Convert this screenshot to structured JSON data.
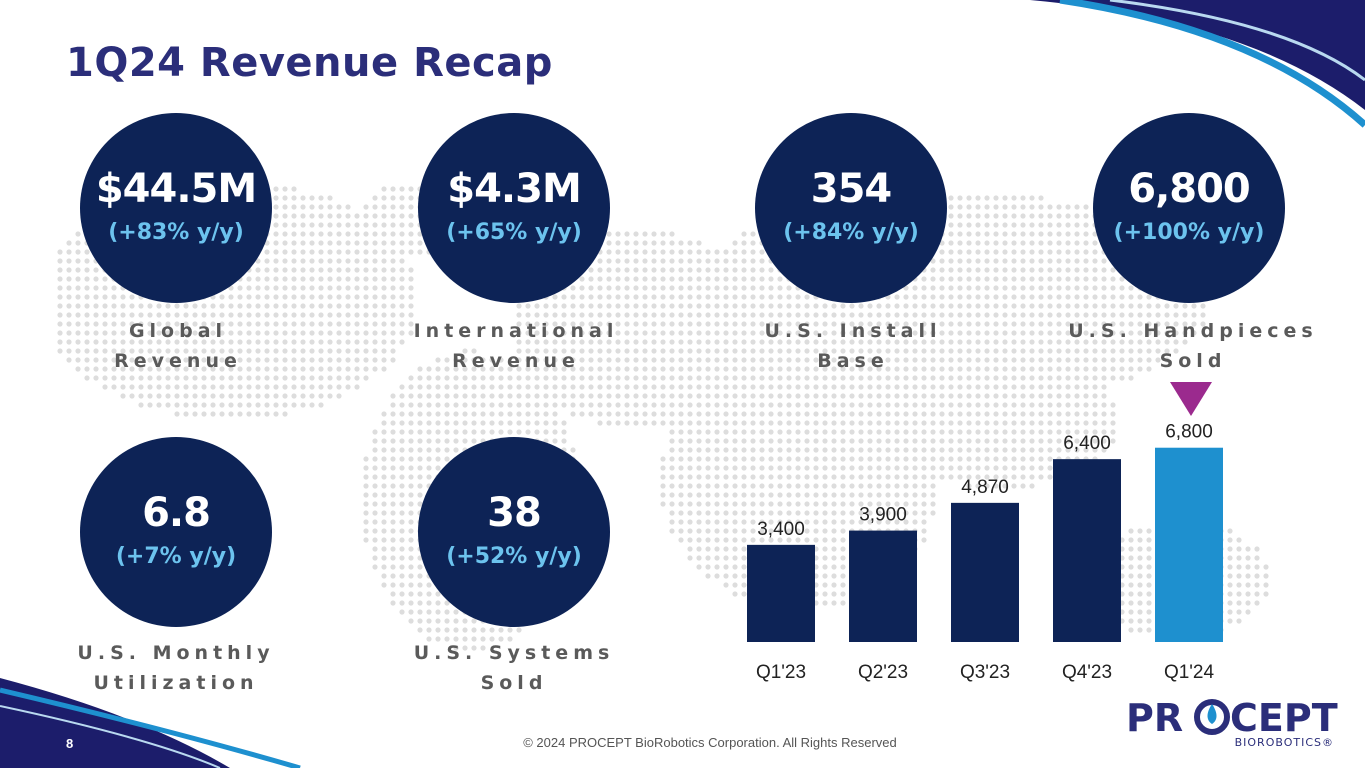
{
  "title": "1Q24 Revenue Recap",
  "metrics": [
    {
      "value": "$44.5M",
      "change": "(+83% y/y)",
      "label_line1": "Global",
      "label_line2": "Revenue"
    },
    {
      "value": "$4.3M",
      "change": "(+65% y/y)",
      "label_line1": "International",
      "label_line2": "Revenue"
    },
    {
      "value": "354",
      "change": "(+84% y/y)",
      "label_line1": "U.S. Install",
      "label_line2": "Base"
    },
    {
      "value": "6,800",
      "change": "(+100% y/y)",
      "label_line1": "U.S. Handpieces",
      "label_line2": "Sold"
    },
    {
      "value": "6.8",
      "change": "(+7% y/y)",
      "label_line1": "U.S. Monthly",
      "label_line2": "Utilization"
    },
    {
      "value": "38",
      "change": "(+52% y/y)",
      "label_line1": "U.S. Systems",
      "label_line2": "Sold"
    }
  ],
  "chart_data": {
    "type": "bar",
    "categories": [
      "Q1'23",
      "Q2'23",
      "Q3'23",
      "Q4'23",
      "Q1'24"
    ],
    "values": [
      3400,
      3900,
      4870,
      6400,
      6800
    ],
    "value_labels": [
      "3,400",
      "3,900",
      "4,870",
      "6,400",
      "6,800"
    ],
    "title": "",
    "xlabel": "",
    "ylabel": "",
    "ylim": [
      0,
      7000
    ],
    "grid": false,
    "bar_colors": [
      "#0d2356",
      "#0d2356",
      "#0d2356",
      "#0d2356",
      "#1e90cf"
    ],
    "highlight_index": 4
  },
  "footer": {
    "copyright": "© 2024 PROCEPT BioRobotics Corporation. All Rights Reserved",
    "page_number": "8"
  },
  "logo": {
    "wordmark": "PROCEPT",
    "sub": "BIOROBOTICS®"
  },
  "colors": {
    "navy": "#0d2356",
    "accent_blue": "#6cc3ee",
    "highlight_bar": "#1e90cf",
    "marker": "#9b2a8e",
    "title": "#2b2e7a"
  },
  "icons": {
    "marker": "triangle-down-icon"
  }
}
